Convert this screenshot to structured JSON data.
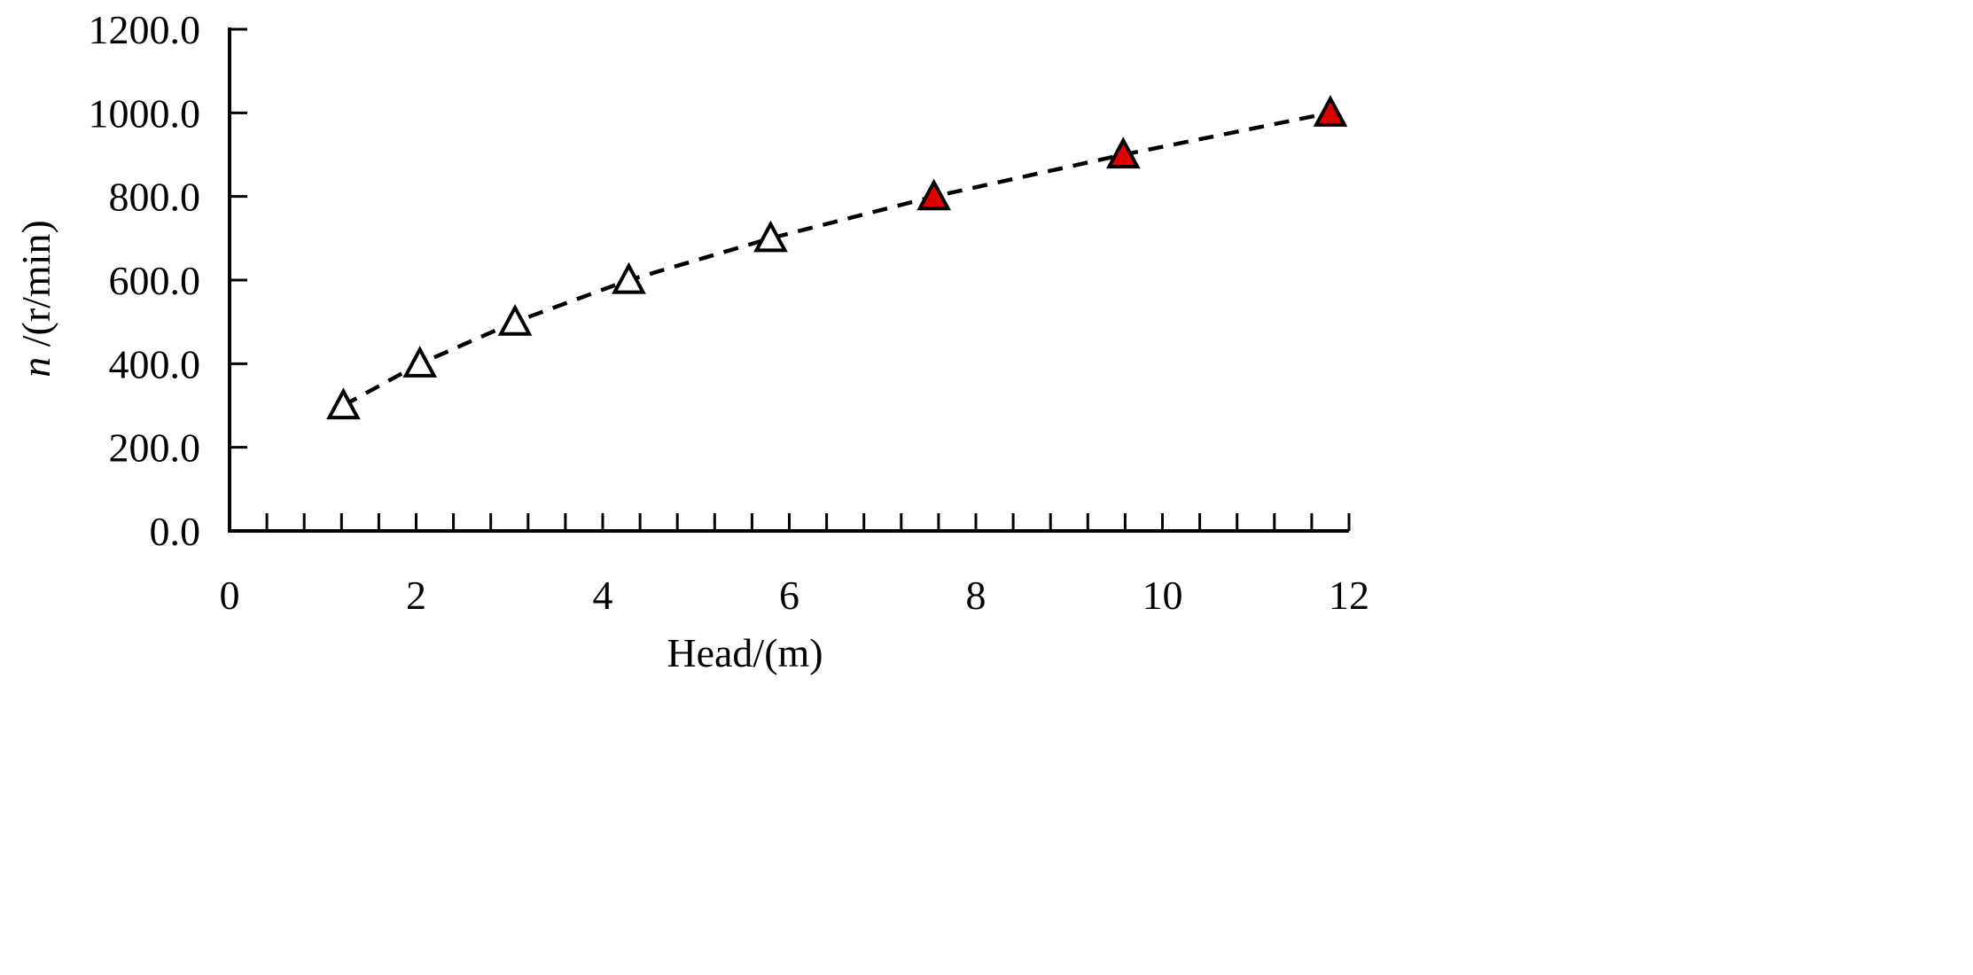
{
  "chart_data": {
    "type": "scatter",
    "title": "",
    "xlabel": "Head/(m)",
    "ylabel": {
      "symbol": "n",
      "unit": " /(r/min)"
    },
    "xlim": [
      0,
      12
    ],
    "ylim": [
      0,
      1200
    ],
    "x_ticks": [
      0,
      2,
      4,
      6,
      8,
      10,
      12
    ],
    "x_tick_labels": [
      "0",
      "2",
      "4",
      "6",
      "8",
      "10",
      "12"
    ],
    "x_minor_step": 0.4,
    "y_ticks": [
      0,
      200,
      400,
      600,
      800,
      1000,
      1200
    ],
    "y_tick_labels": [
      "0.0",
      "200.0",
      "400.0",
      "600.0",
      "800.0",
      "1000.0",
      "1200.0"
    ],
    "grid": false,
    "legend": "none",
    "line_style": "dashed",
    "line_color": "#000000",
    "marker": "triangle",
    "series": [
      {
        "points": [
          {
            "x": 1.22,
            "y": 300,
            "filled": false
          },
          {
            "x": 2.04,
            "y": 400,
            "filled": false
          },
          {
            "x": 3.06,
            "y": 500,
            "filled": false
          },
          {
            "x": 4.28,
            "y": 600,
            "filled": false
          },
          {
            "x": 5.8,
            "y": 700,
            "filled": false
          },
          {
            "x": 7.55,
            "y": 800,
            "filled": true
          },
          {
            "x": 9.58,
            "y": 900,
            "filled": true
          },
          {
            "x": 11.8,
            "y": 1000,
            "filled": true
          }
        ]
      }
    ],
    "colors": {
      "filled_marker": "#e00000",
      "open_marker": "#ffffff",
      "stroke": "#000000"
    }
  }
}
